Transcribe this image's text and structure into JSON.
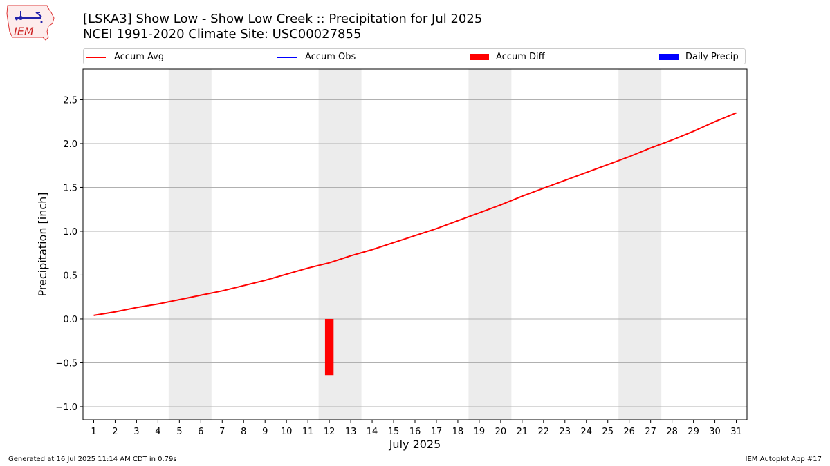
{
  "header": {
    "title_line1": "[LSKA3] Show Low - Show Low Creek :: Precipitation for Jul 2025",
    "title_line2": "NCEI 1991-2020 Climate Site: USC00027855"
  },
  "logo": {
    "text": "IEM"
  },
  "legend": [
    {
      "label": "Accum Avg",
      "kind": "line",
      "color": "#ff0000"
    },
    {
      "label": "Accum Obs",
      "kind": "line",
      "color": "#0000ff"
    },
    {
      "label": "Accum Diff",
      "kind": "rect",
      "color": "#ff0000"
    },
    {
      "label": "Daily Precip",
      "kind": "rect",
      "color": "#0000ff"
    }
  ],
  "chart_data": {
    "type": "line",
    "xlabel": "July 2025",
    "ylabel": "Precipitation [inch]",
    "ylim": [
      -1.15,
      2.85
    ],
    "xlim": [
      0.5,
      31.5
    ],
    "yticks": [
      -1.0,
      -0.5,
      0.0,
      0.5,
      1.0,
      1.5,
      2.0,
      2.5
    ],
    "ytick_labels": [
      "−1.0",
      "−0.5",
      "0.0",
      "0.5",
      "1.0",
      "1.5",
      "2.0",
      "2.5"
    ],
    "x": [
      1,
      2,
      3,
      4,
      5,
      6,
      7,
      8,
      9,
      10,
      11,
      12,
      13,
      14,
      15,
      16,
      17,
      18,
      19,
      20,
      21,
      22,
      23,
      24,
      25,
      26,
      27,
      28,
      29,
      30,
      31
    ],
    "xtick_labels": [
      "1",
      "2",
      "3",
      "4",
      "5",
      "6",
      "7",
      "8",
      "9",
      "10",
      "11",
      "12",
      "13",
      "14",
      "15",
      "16",
      "17",
      "18",
      "19",
      "20",
      "21",
      "22",
      "23",
      "24",
      "25",
      "26",
      "27",
      "28",
      "29",
      "30",
      "31"
    ],
    "weekend_spans": [
      [
        4.5,
        6.5
      ],
      [
        11.5,
        13.5
      ],
      [
        18.5,
        20.5
      ],
      [
        25.5,
        27.5
      ]
    ],
    "grid": "horizontal",
    "series": [
      {
        "name": "Accum Avg",
        "kind": "line",
        "color": "#ff0000",
        "x": [
          1,
          2,
          3,
          4,
          5,
          6,
          7,
          8,
          9,
          10,
          11,
          12,
          13,
          14,
          15,
          16,
          17,
          18,
          19,
          20,
          21,
          22,
          23,
          24,
          25,
          26,
          27,
          28,
          29,
          30,
          31
        ],
        "values": [
          0.04,
          0.08,
          0.13,
          0.17,
          0.22,
          0.27,
          0.32,
          0.38,
          0.44,
          0.51,
          0.58,
          0.64,
          0.72,
          0.79,
          0.87,
          0.95,
          1.03,
          1.12,
          1.21,
          1.3,
          1.4,
          1.49,
          1.58,
          1.67,
          1.76,
          1.85,
          1.95,
          2.04,
          2.14,
          2.25,
          2.35
        ]
      },
      {
        "name": "Accum Diff",
        "kind": "bar",
        "color": "#ff0000",
        "x": [
          12
        ],
        "values": [
          -0.64
        ]
      }
    ]
  },
  "footer": {
    "left": "Generated at 16 Jul 2025 11:14 AM CDT in 0.79s",
    "right": "IEM Autoplot App #17"
  }
}
